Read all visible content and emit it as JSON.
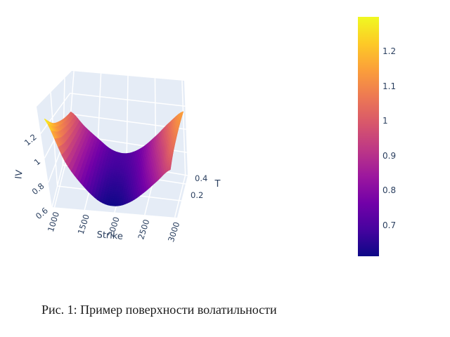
{
  "figure": {
    "caption": "Рис. 1: Пример поверхности волатильности"
  },
  "chart_data": {
    "type": "surface",
    "title": "",
    "xlabel": "Strike",
    "ylabel": "T",
    "zlabel": "IV",
    "xlim": [
      960,
      3040
    ],
    "ylim": [
      0,
      0.5
    ],
    "zlim": [
      0.6,
      1.42
    ],
    "x_ticks": [
      1000,
      1500,
      2000,
      2500,
      3000
    ],
    "y_ticks": [
      0.2,
      0.4
    ],
    "z_ticks": [
      0.6,
      0.8,
      1,
      1.2
    ],
    "grid": true,
    "surface": {
      "strike": [
        1000,
        1250,
        1500,
        1750,
        2000,
        2250,
        2500,
        2750,
        3000
      ],
      "t": [
        0.05,
        0.16,
        0.28,
        0.39,
        0.5
      ],
      "iv": [
        [
          1.29,
          0.95,
          0.76,
          0.64,
          0.615,
          0.66,
          0.75,
          0.86,
          0.97
        ],
        [
          1.18,
          0.93,
          0.77,
          0.66,
          0.64,
          0.69,
          0.79,
          0.905,
          1.03
        ],
        [
          1.11,
          0.92,
          0.78,
          0.68,
          0.665,
          0.72,
          0.83,
          0.95,
          1.08
        ],
        [
          1.06,
          0.91,
          0.79,
          0.7,
          0.69,
          0.75,
          0.865,
          1.0,
          1.12
        ],
        [
          1.02,
          0.9,
          0.8,
          0.715,
          0.705,
          0.775,
          0.9,
          1.04,
          1.15
        ]
      ]
    },
    "colorbar": {
      "ticks": [
        1.2,
        1.1,
        1,
        0.9,
        0.8,
        0.7
      ],
      "cmin": 0.61,
      "cmax": 1.3
    },
    "colormap": {
      "name": "plasma",
      "stops": [
        "#0d0887",
        "#46039f",
        "#7201a8",
        "#9c179e",
        "#bd3786",
        "#d8576b",
        "#ed7953",
        "#fb9f3a",
        "#fdca26",
        "#f0f921"
      ]
    },
    "colors": {
      "wall": "#e5ecf6",
      "grid": "#ffffff",
      "tick_label": "#2a3f5f",
      "caption": "#1a1a1a",
      "background": "#ffffff"
    }
  }
}
